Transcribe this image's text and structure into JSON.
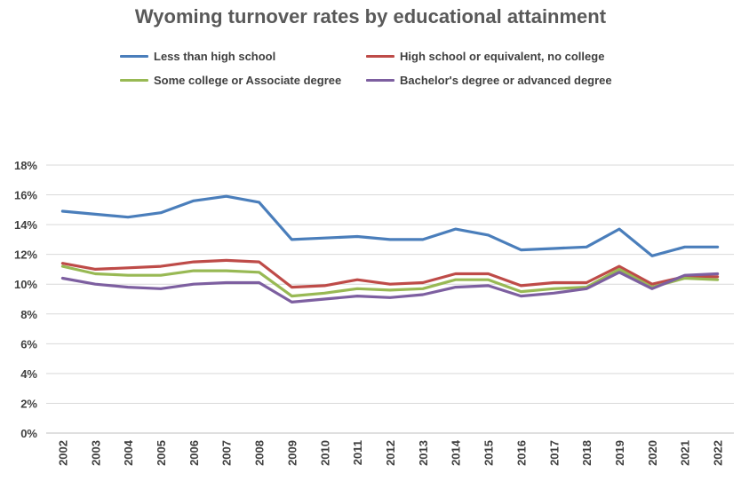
{
  "chart_data": {
    "type": "line",
    "title": "Wyoming turnover rates by educational attainment",
    "xlabel": "",
    "ylabel": "",
    "ylim": [
      0,
      18
    ],
    "yticks": [
      "0%",
      "2%",
      "4%",
      "6%",
      "8%",
      "10%",
      "12%",
      "14%",
      "16%",
      "18%"
    ],
    "grid": "horizontal",
    "legend_placement": "top",
    "categories": [
      "2002",
      "2003",
      "2004",
      "2005",
      "2006",
      "2007",
      "2008",
      "2009",
      "2010",
      "2011",
      "2012",
      "2013",
      "2014",
      "2015",
      "2016",
      "2017",
      "2018",
      "2019",
      "2020",
      "2021",
      "2022"
    ],
    "series": [
      {
        "name": "Less than high school",
        "color": "#4A7EBB",
        "values": [
          14.9,
          14.7,
          14.5,
          14.8,
          15.6,
          15.9,
          15.5,
          13.0,
          13.1,
          13.2,
          13.0,
          13.0,
          13.7,
          13.3,
          12.3,
          12.4,
          12.5,
          13.7,
          11.9,
          12.5,
          12.5
        ]
      },
      {
        "name": "High school or equivalent, no college",
        "color": "#BE4B48",
        "values": [
          11.4,
          11.0,
          11.1,
          11.2,
          11.5,
          11.6,
          11.5,
          9.8,
          9.9,
          10.3,
          10.0,
          10.1,
          10.7,
          10.7,
          9.9,
          10.1,
          10.1,
          11.2,
          10.0,
          10.5,
          10.5
        ]
      },
      {
        "name": "Some college or Associate degree",
        "color": "#98B954",
        "values": [
          11.2,
          10.7,
          10.6,
          10.6,
          10.9,
          10.9,
          10.8,
          9.2,
          9.4,
          9.7,
          9.6,
          9.7,
          10.3,
          10.3,
          9.5,
          9.7,
          9.8,
          11.0,
          9.8,
          10.4,
          10.3
        ]
      },
      {
        "name": "Bachelor's degree or advanced degree",
        "color": "#7D5FA0",
        "values": [
          10.4,
          10.0,
          9.8,
          9.7,
          10.0,
          10.1,
          10.1,
          8.8,
          9.0,
          9.2,
          9.1,
          9.3,
          9.8,
          9.9,
          9.2,
          9.4,
          9.7,
          10.8,
          9.7,
          10.6,
          10.7
        ]
      }
    ]
  }
}
